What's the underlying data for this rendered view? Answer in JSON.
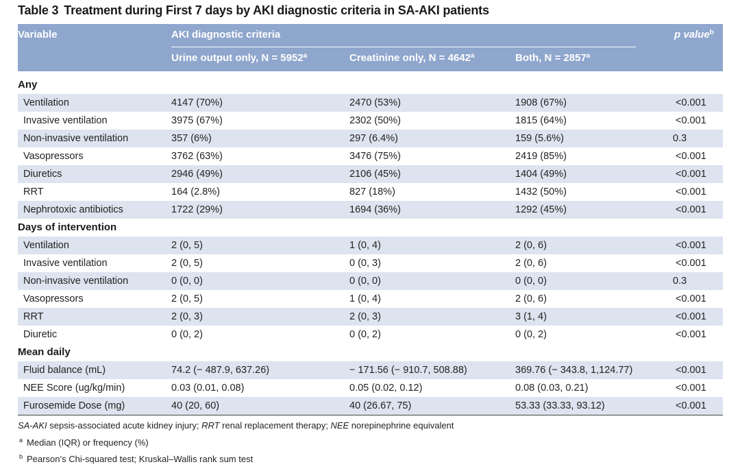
{
  "caption": {
    "number": "Table 3",
    "title": "Treatment during First 7 days by AKI diagnostic criteria in SA-AKI patients"
  },
  "header": {
    "variable": "Variable",
    "group": "AKI diagnostic criteria",
    "pvalue": "p value",
    "pvalue_mark": "b",
    "col1": "Urine output only, N = 5952",
    "col2": "Creatinine only, N = 4642",
    "col3": "Both, N = 2857",
    "col_mark": "a"
  },
  "sections": [
    {
      "title": "Any",
      "rows": [
        [
          "Ventilation",
          "4147 (70%)",
          "2470 (53%)",
          "1908 (67%)",
          "<0.001"
        ],
        [
          "Invasive ventilation",
          "3975 (67%)",
          "2302 (50%)",
          "1815 (64%)",
          "<0.001"
        ],
        [
          "Non-invasive ventilation",
          "357 (6%)",
          "297 (6.4%)",
          "159 (5.6%)",
          "0.3"
        ],
        [
          "Vasopressors",
          "3762 (63%)",
          "3476 (75%)",
          "2419 (85%)",
          "<0.001"
        ],
        [
          "Diuretics",
          "2946 (49%)",
          "2106 (45%)",
          "1404 (49%)",
          "<0.001"
        ],
        [
          "RRT",
          "164 (2.8%)",
          "827 (18%)",
          "1432 (50%)",
          "<0.001"
        ],
        [
          "Nephrotoxic antibiotics",
          "1722 (29%)",
          "1694 (36%)",
          "1292 (45%)",
          "<0.001"
        ]
      ]
    },
    {
      "title": "Days of intervention",
      "rows": [
        [
          "Ventilation",
          "2 (0, 5)",
          "1 (0, 4)",
          "2 (0, 6)",
          "<0.001"
        ],
        [
          "Invasive ventilation",
          "2 (0, 5)",
          "0 (0, 3)",
          "2 (0, 6)",
          "<0.001"
        ],
        [
          "Non-invasive ventilation",
          "0 (0, 0)",
          "0 (0, 0)",
          "0 (0, 0)",
          "0.3"
        ],
        [
          "Vasopressors",
          "2 (0, 5)",
          "1 (0, 4)",
          "2 (0, 6)",
          "<0.001"
        ],
        [
          "RRT",
          "2 (0, 3)",
          "2 (0, 3)",
          "3 (1, 4)",
          "<0.001"
        ],
        [
          "Diuretic",
          "0 (0, 2)",
          "0 (0, 2)",
          "0 (0, 2)",
          "<0.001"
        ]
      ]
    },
    {
      "title": "Mean daily",
      "rows": [
        [
          "Fluid balance (mL)",
          "74.2 (− 487.9, 637.26)",
          "− 171.56 (− 910.7, 508.88)",
          "369.76 (− 343.8, 1,124.77)",
          "<0.001"
        ],
        [
          "NEE Score (ug/kg/min)",
          "0.03 (0.01, 0.08)",
          "0.05 (0.02, 0.12)",
          "0.08 (0.03, 0.21)",
          "<0.001"
        ],
        [
          "Furosemide Dose (mg)",
          "40 (20, 60)",
          "40 (26.67, 75)",
          "53.33 (33.33, 93.12)",
          "<0.001"
        ]
      ]
    }
  ],
  "footnotes": {
    "abbreviations": [
      {
        "term": "SA-AKI",
        "text": " sepsis-associated acute kidney injury; "
      },
      {
        "term": "RRT",
        "text": " renal replacement therapy; "
      },
      {
        "term": "NEE",
        "text": " norepinephrine equivalent"
      }
    ],
    "notes": [
      {
        "mark": "a",
        "text": "Median (IQR) or frequency (%)"
      },
      {
        "mark": "b",
        "text": "Pearson’s Chi-squared test; Kruskal–Wallis rank sum test"
      }
    ]
  }
}
